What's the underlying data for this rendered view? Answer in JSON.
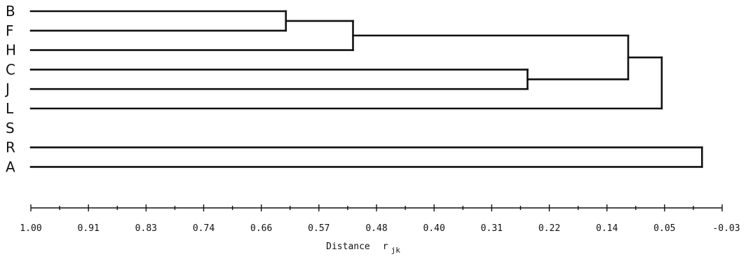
{
  "chart_data": {
    "type": "dendrogram",
    "leaves": [
      "B",
      "F",
      "H",
      "C",
      "J",
      "L",
      "S",
      "R",
      "A"
    ],
    "merges": [
      {
        "left": "B",
        "right": "F",
        "distance": 0.62
      },
      {
        "left": "B+F",
        "right": "H",
        "distance": 0.52
      },
      {
        "left": "C",
        "right": "J",
        "distance": 0.26
      },
      {
        "left": "B+F+H",
        "right": "C+J",
        "distance": 0.11
      },
      {
        "left": "B+F+H+C+J",
        "right": "L",
        "distance": 0.06
      },
      {
        "left": "S",
        "right": "R+A",
        "distance": 0.0
      },
      {
        "left": "R",
        "right": "A",
        "distance": 0.0
      },
      {
        "left": "B+F+H+C+J+L",
        "right": "S+R+A",
        "distance": -0.025
      }
    ],
    "x_axis": {
      "tick_labels": [
        "1.00",
        "0.91",
        "0.83",
        "0.74",
        "0.66",
        "0.57",
        "0.48",
        "0.40",
        "0.31",
        "0.22",
        "0.14",
        "0.05",
        "-0.03"
      ],
      "range": [
        1.0,
        -0.03
      ],
      "label": "Distance",
      "label_symbol": "r",
      "label_subscript": "jk"
    },
    "grid": false
  }
}
